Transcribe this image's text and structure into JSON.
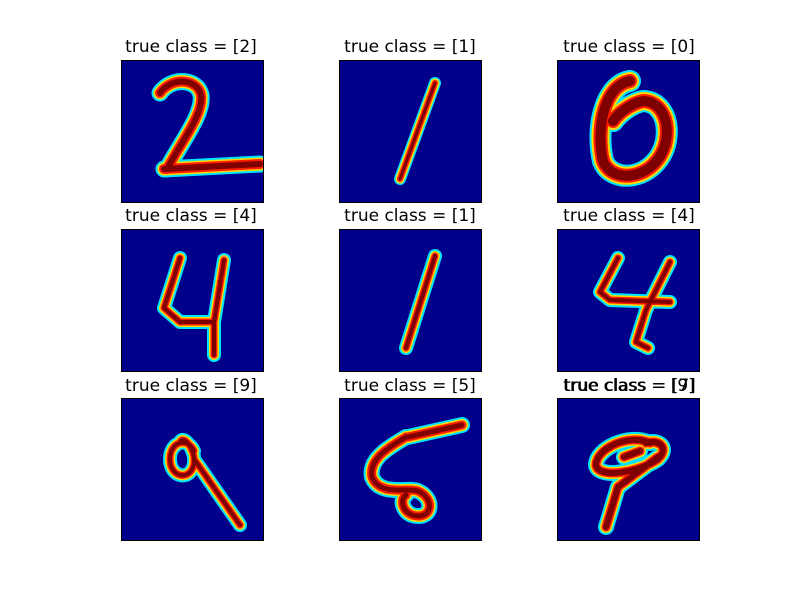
{
  "figure": {
    "background": "#ffffff",
    "panel_background": "#00008b",
    "colormap": "jet",
    "stroke_colors": [
      "#7f0000",
      "#ff1e00",
      "#ffd700",
      "#00e5ff"
    ]
  },
  "panels": [
    {
      "title": "true class = [2]",
      "digit_icon": "digit-2-stroke"
    },
    {
      "title": "true class = [1]",
      "digit_icon": "digit-1-stroke"
    },
    {
      "title": "true class = [0]",
      "digit_icon": "digit-0-stroke"
    },
    {
      "title": "true class = [4]",
      "digit_icon": "digit-4-stroke"
    },
    {
      "title": "true class = [1]",
      "digit_icon": "digit-1-stroke"
    },
    {
      "title": "true class = [4]",
      "digit_icon": "digit-4-stroke"
    },
    {
      "title": "true class = [9]",
      "digit_icon": "digit-9-stroke"
    },
    {
      "title": "true class = [5]",
      "digit_icon": "digit-5-stroke"
    },
    {
      "title": "true class = [9]",
      "digit_icon": "digit-9-stroke",
      "overlapping_title": "true class = [7]"
    }
  ]
}
